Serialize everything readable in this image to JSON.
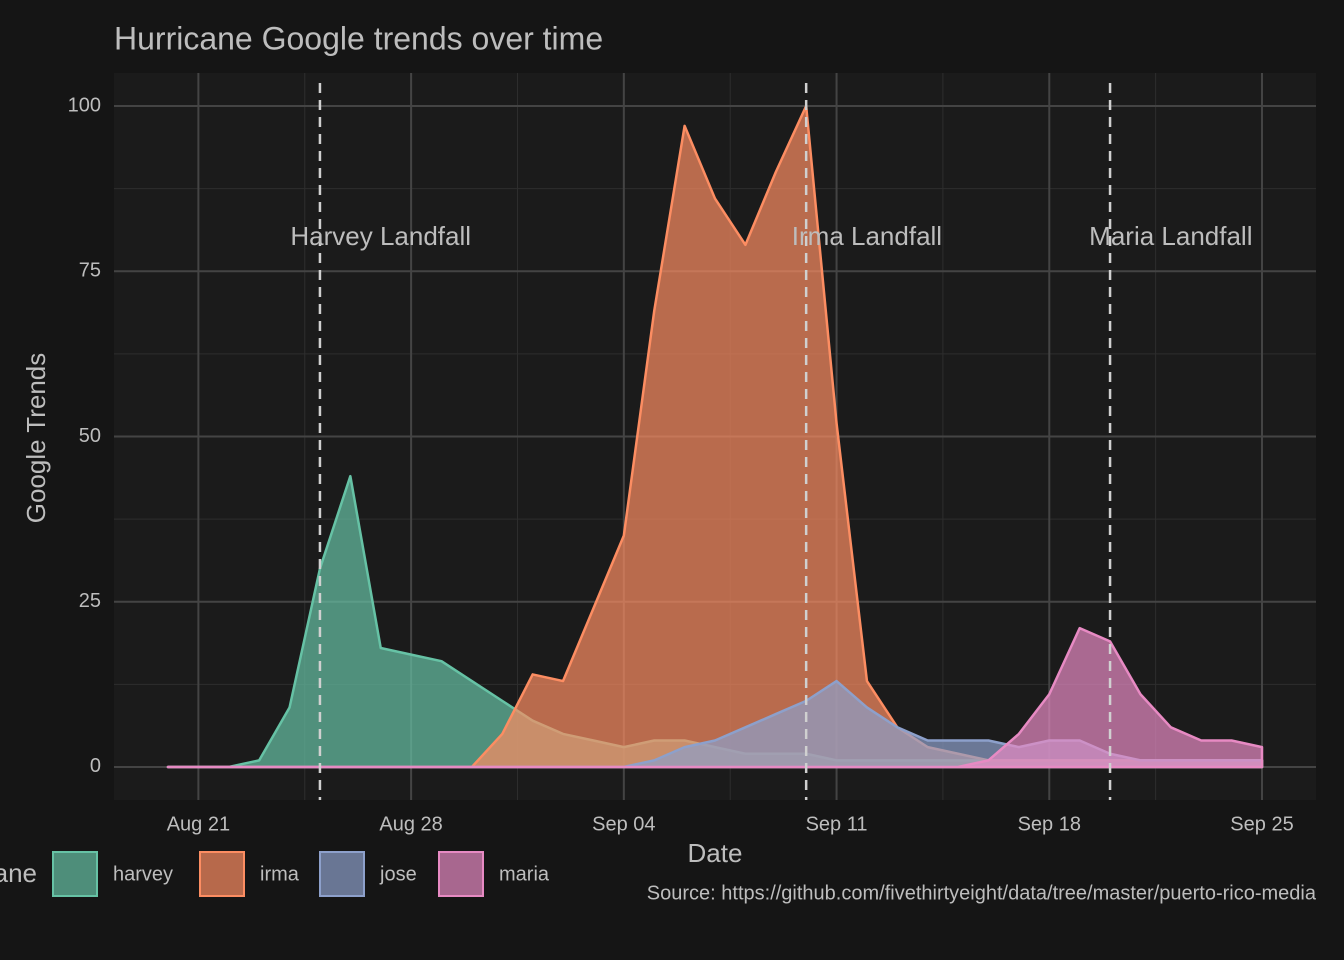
{
  "chart_data": {
    "type": "area",
    "title": "Hurricane Google trends over time",
    "x_label": "Date",
    "y_label": "Google Trends",
    "legend_title": "hurricane",
    "caption": "Source: https://github.com/fivethirtyeight/data/tree/master/puerto-rico-media",
    "x": [
      "Aug 20",
      "Aug 21",
      "Aug 22",
      "Aug 23",
      "Aug 24",
      "Aug 25",
      "Aug 26",
      "Aug 27",
      "Aug 28",
      "Aug 29",
      "Aug 30",
      "Aug 31",
      "Sep 01",
      "Sep 02",
      "Sep 03",
      "Sep 04",
      "Sep 05",
      "Sep 06",
      "Sep 07",
      "Sep 08",
      "Sep 09",
      "Sep 10",
      "Sep 11",
      "Sep 12",
      "Sep 13",
      "Sep 14",
      "Sep 15",
      "Sep 16",
      "Sep 17",
      "Sep 18",
      "Sep 19",
      "Sep 20",
      "Sep 21",
      "Sep 22",
      "Sep 23",
      "Sep 24",
      "Sep 25"
    ],
    "xticks": [
      "Aug 21",
      "Aug 28",
      "Sep 04",
      "Sep 11",
      "Sep 18",
      "Sep 25"
    ],
    "ylim": [
      -5,
      105
    ],
    "yticks": [
      0,
      25,
      50,
      75,
      100
    ],
    "grid": true,
    "series": [
      {
        "name": "harvey",
        "color": "#66c2a5",
        "values": [
          0,
          0,
          0,
          1,
          9,
          30,
          44,
          18,
          17,
          16,
          13,
          10,
          7,
          5,
          4,
          3,
          4,
          4,
          3,
          2,
          2,
          2,
          1,
          1,
          1,
          1,
          1,
          1,
          1,
          1,
          1,
          1,
          1,
          1,
          1,
          1,
          1
        ]
      },
      {
        "name": "irma",
        "color": "#fc8d62",
        "values": [
          0,
          0,
          0,
          0,
          0,
          0,
          0,
          0,
          0,
          0,
          0,
          5,
          14,
          13,
          24,
          35,
          69,
          97,
          86,
          79,
          90,
          100,
          52,
          13,
          6,
          3,
          2,
          1,
          1,
          1,
          1,
          1,
          1,
          1,
          1,
          1,
          1
        ]
      },
      {
        "name": "jose",
        "color": "#8da0cb",
        "values": [
          0,
          0,
          0,
          0,
          0,
          0,
          0,
          0,
          0,
          0,
          0,
          0,
          0,
          0,
          0,
          0,
          1,
          3,
          4,
          6,
          8,
          10,
          13,
          9,
          6,
          4,
          4,
          4,
          3,
          4,
          4,
          2,
          1,
          1,
          1,
          1,
          1
        ]
      },
      {
        "name": "maria",
        "color": "#e78ac3",
        "values": [
          0,
          0,
          0,
          0,
          0,
          0,
          0,
          0,
          0,
          0,
          0,
          0,
          0,
          0,
          0,
          0,
          0,
          0,
          0,
          0,
          0,
          0,
          0,
          0,
          0,
          0,
          0,
          1,
          5,
          11,
          21,
          19,
          11,
          6,
          4,
          4,
          3
        ]
      }
    ],
    "annotations": [
      {
        "line_x": "Aug 25",
        "label": "Harvey Landfall",
        "x": "Aug 27",
        "y": 80
      },
      {
        "line_x": "Sep 10",
        "label": "Irma Landfall",
        "x": "Sep 12",
        "y": 80
      },
      {
        "line_x": "Sep 20",
        "label": "Maria Landfall",
        "x": "Sep 22",
        "y": 80
      }
    ]
  }
}
